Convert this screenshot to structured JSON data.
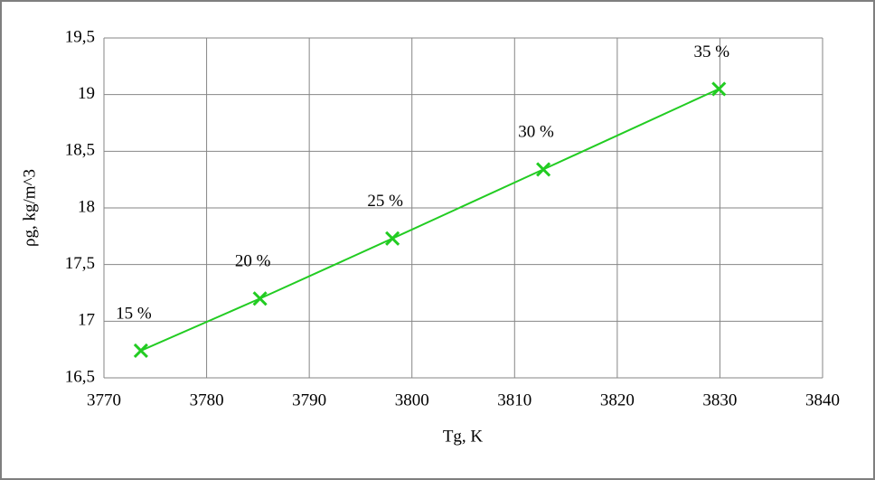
{
  "chart_data": {
    "type": "scatter-line",
    "x_label": "Tg, K",
    "y_label": "ρg, kg/m^3",
    "x": [
      3773.6,
      3785.2,
      3798.1,
      3812.8,
      3829.9
    ],
    "values": [
      16.74,
      17.2,
      17.73,
      18.34,
      19.05
    ],
    "point_labels": [
      "15 %",
      "20 %",
      "25 %",
      "30 %",
      "35 %"
    ],
    "color": "#22cc22",
    "xlim": [
      3770,
      3840
    ],
    "xticks": [
      3770,
      3780,
      3790,
      3800,
      3810,
      3820,
      3830,
      3840
    ],
    "ylim": [
      16.5,
      19.5
    ],
    "yticks": [
      {
        "value": 16.5,
        "label": "16,5"
      },
      17,
      {
        "value": 17.5,
        "label": "17,5"
      },
      18,
      {
        "value": 18.5,
        "label": "18,5"
      },
      19,
      {
        "value": 19.5,
        "label": "19,5"
      }
    ],
    "grid": true
  }
}
